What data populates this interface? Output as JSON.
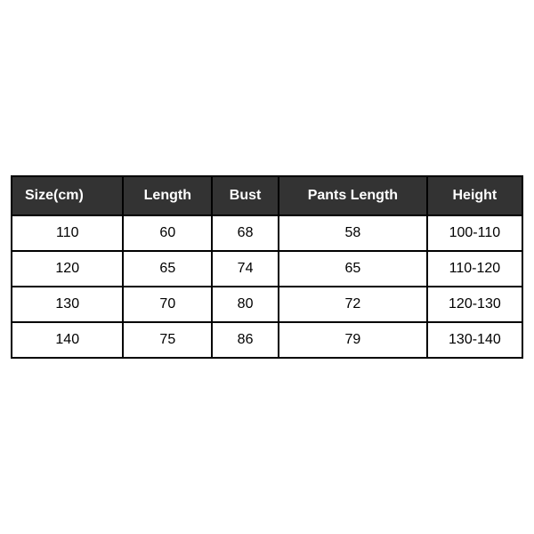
{
  "table": {
    "type": "table",
    "header_background": "#333333",
    "header_text_color": "#ffffff",
    "cell_text_color": "#000000",
    "border_color": "#000000",
    "border_width": 2,
    "header_fontsize": 16,
    "cell_fontsize": 16,
    "columns": [
      {
        "label": "Size(cm)",
        "align": "left"
      },
      {
        "label": "Length",
        "align": "center"
      },
      {
        "label": "Bust",
        "align": "center"
      },
      {
        "label": "Pants Length",
        "align": "center"
      },
      {
        "label": "Height",
        "align": "center"
      }
    ],
    "rows": [
      [
        "110",
        "60",
        "68",
        "58",
        "100-110"
      ],
      [
        "120",
        "65",
        "74",
        "65",
        "110-120"
      ],
      [
        "130",
        "70",
        "80",
        "72",
        "120-130"
      ],
      [
        "140",
        "75",
        "86",
        "79",
        "130-140"
      ]
    ]
  }
}
